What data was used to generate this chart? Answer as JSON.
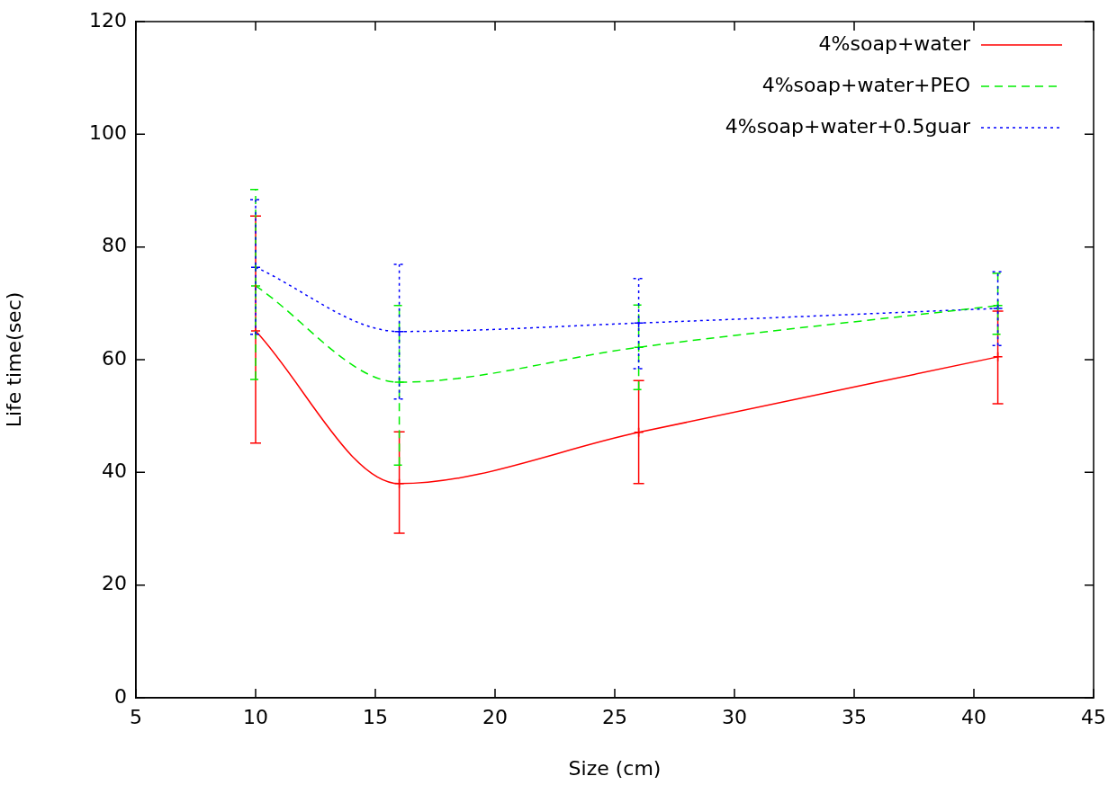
{
  "chart_data": {
    "type": "line",
    "xlabel": "Size (cm)",
    "ylabel": "Life time(sec)",
    "x": [
      10,
      16,
      26,
      41
    ],
    "xlim": [
      5,
      45
    ],
    "xticks": [
      5,
      10,
      15,
      20,
      25,
      30,
      35,
      40,
      45
    ],
    "ylim": [
      0,
      120
    ],
    "yticks": [
      0,
      20,
      40,
      60,
      80,
      100,
      120
    ],
    "grid": false,
    "legend": "top right",
    "series": [
      {
        "name": "4%soap+water",
        "color": "#ff0000",
        "line_style": "solid",
        "marker": "cross",
        "values": [
          65.1,
          38,
          47.1,
          60.5
        ],
        "errors": [
          [
            45.2,
            85.5
          ],
          [
            29.2,
            47.2
          ],
          [
            38,
            56.3
          ],
          [
            52.2,
            68.6
          ]
        ]
      },
      {
        "name": "4%soap+water+PEO",
        "color": "#00ee00",
        "line_style": "dashed",
        "marker": "cross",
        "values": [
          73.1,
          56,
          62.2,
          69.6
        ],
        "errors": [
          [
            56.5,
            90.2
          ],
          [
            41.3,
            69.6
          ],
          [
            54.7,
            69.7
          ],
          [
            64.5,
            75.3
          ]
        ]
      },
      {
        "name": "4%soap+water+0.5guar",
        "color": "#0000ff",
        "line_style": "dotted",
        "marker": "cross",
        "values": [
          76.4,
          65,
          66.5,
          69.1
        ],
        "errors": [
          [
            64.5,
            88.4
          ],
          [
            53,
            76.9
          ],
          [
            58.4,
            74.4
          ],
          [
            62.5,
            75.6
          ]
        ]
      }
    ]
  }
}
